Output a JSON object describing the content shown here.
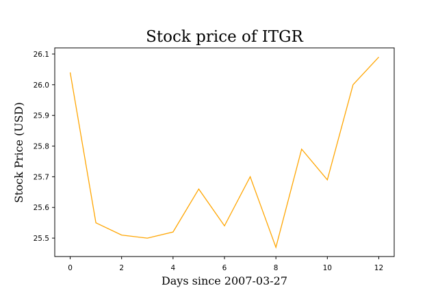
{
  "chart_data": {
    "type": "line",
    "title": "Stock price of ITGR",
    "xlabel": "Days since 2007-03-27",
    "ylabel": "Stock Price (USD)",
    "xlim": [
      -0.6,
      12.6
    ],
    "ylim": [
      25.44,
      26.12
    ],
    "x_ticks": [
      0,
      2,
      4,
      6,
      8,
      10,
      12
    ],
    "y_ticks": [
      25.5,
      25.6,
      25.7,
      25.8,
      25.9,
      26.0,
      26.1
    ],
    "y_tick_labels": [
      "25.5",
      "25.6",
      "25.7",
      "25.8",
      "25.9",
      "26.0",
      "26.1"
    ],
    "grid": false,
    "series": [
      {
        "color": "#ffa500",
        "x": [
          0,
          1,
          2,
          3,
          4,
          5,
          6,
          7,
          8,
          9,
          10,
          11,
          12
        ],
        "values": [
          26.04,
          25.55,
          25.51,
          25.5,
          25.52,
          25.66,
          25.54,
          25.7,
          25.47,
          25.79,
          25.69,
          26.0,
          26.09
        ]
      }
    ]
  }
}
